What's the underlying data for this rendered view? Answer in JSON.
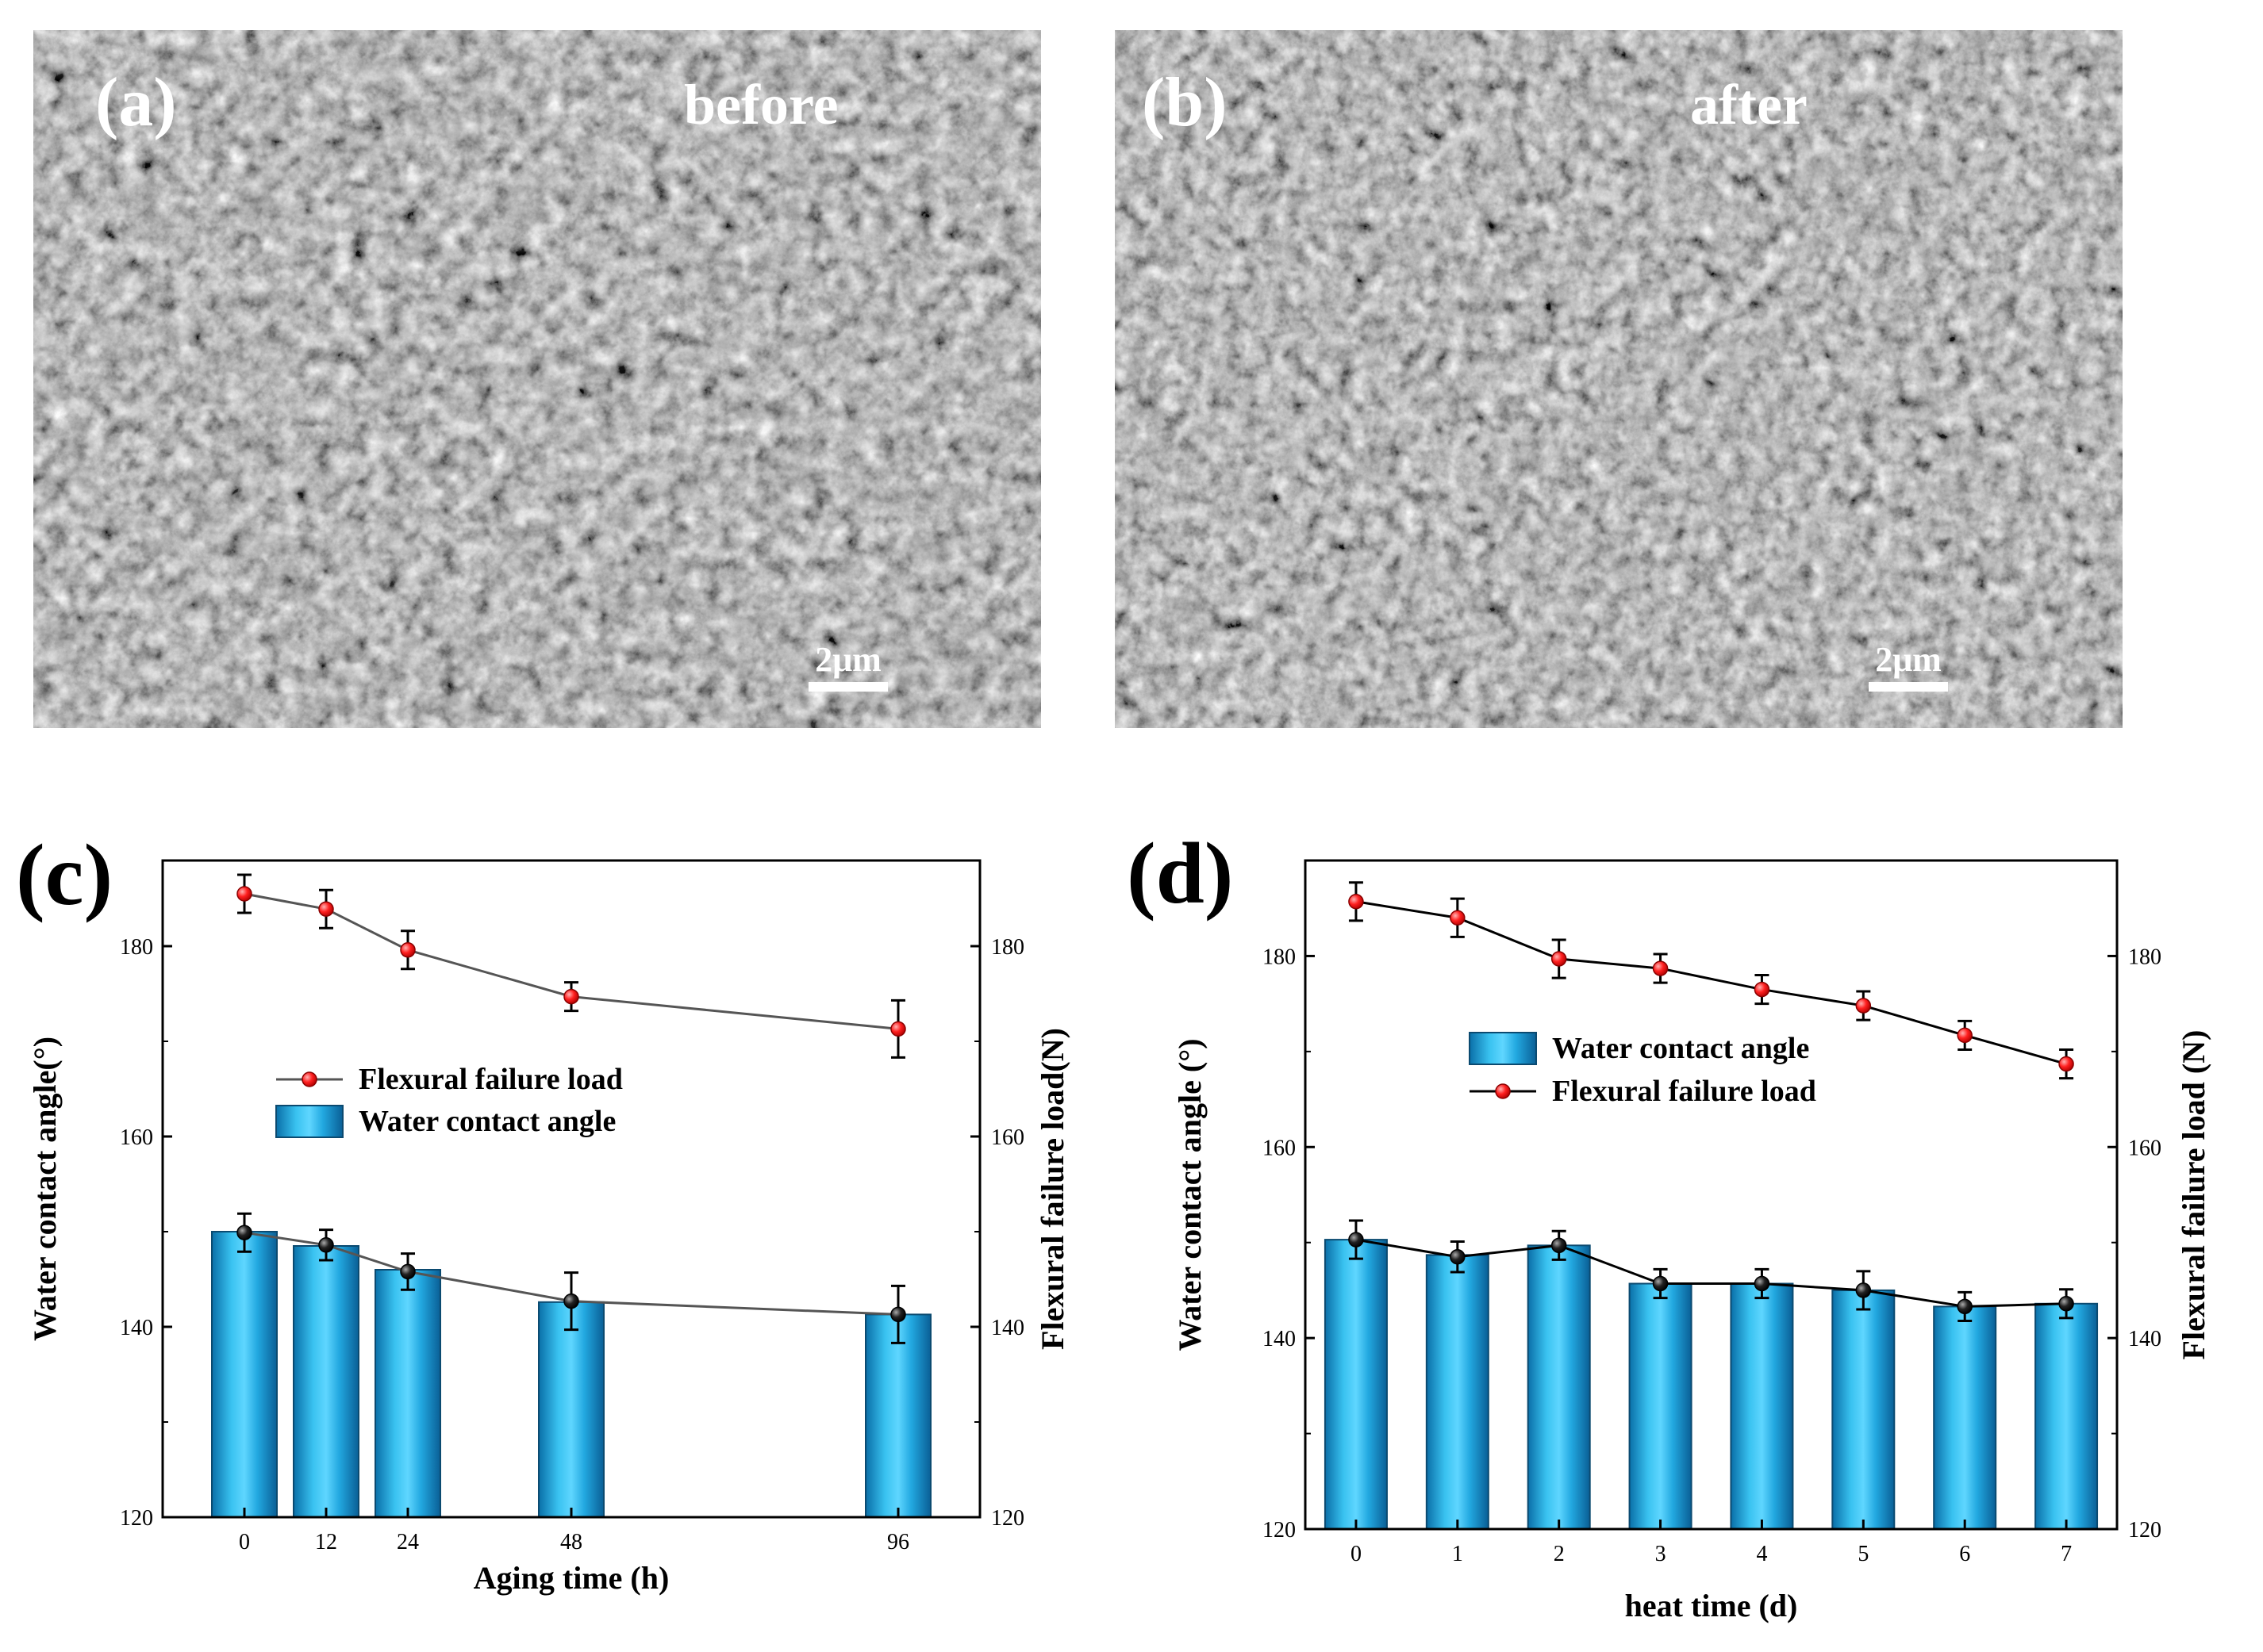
{
  "sem_images": [
    {
      "panel": "(a)",
      "caption": "before",
      "scale_bar": "2μm"
    },
    {
      "panel": "(b)",
      "caption": "after",
      "scale_bar": "2μm"
    }
  ],
  "chart_data": [
    {
      "panel": "(c)",
      "type": "bar",
      "xlabel": "Aging time (h)",
      "ylabel": "Water contact angle(°)",
      "y2label": "Flexural failure load(N)",
      "x": [
        0,
        12,
        24,
        48,
        96
      ],
      "xticks": [
        "0",
        "12",
        "24",
        "48",
        "96"
      ],
      "xlim": [
        -12,
        108
      ],
      "ylim": [
        120,
        189
      ],
      "y2lim": [
        120,
        189
      ],
      "yticks": [
        120,
        140,
        160,
        180
      ],
      "y2ticks": [
        120,
        140,
        160,
        180
      ],
      "series": [
        {
          "name": "Water contact angle",
          "type": "bar",
          "color": "#1aa3dc",
          "values": [
            150.0,
            148.5,
            146.0,
            142.6,
            141.3
          ],
          "line_values": [
            149.9,
            148.6,
            145.8,
            142.7,
            141.3
          ],
          "errors": [
            2.0,
            1.6,
            1.9,
            3.0,
            3.0
          ]
        },
        {
          "name": "Flexural failure load",
          "type": "line",
          "color": "#e51b1b",
          "line_color": "#555555",
          "values": [
            185.5,
            183.9,
            179.6,
            174.7,
            171.3
          ],
          "errors": [
            2.0,
            2.0,
            2.0,
            1.5,
            3.0
          ]
        }
      ],
      "legend_order": [
        "Flexural failure load",
        "Water contact angle"
      ]
    },
    {
      "panel": "(d)",
      "type": "bar",
      "xlabel": "heat time (d)",
      "ylabel": "Water contact angle (°)",
      "y2label": "Flexural failure load (N)",
      "x": [
        0,
        1,
        2,
        3,
        4,
        5,
        6,
        7
      ],
      "xticks": [
        "0",
        "1",
        "2",
        "3",
        "4",
        "5",
        "6",
        "7"
      ],
      "xlim": [
        -0.5,
        7.5
      ],
      "ylim": [
        120,
        190
      ],
      "y2lim": [
        120,
        190
      ],
      "yticks": [
        120,
        140,
        160,
        180
      ],
      "y2ticks": [
        120,
        140,
        160,
        180
      ],
      "series": [
        {
          "name": "Water contact angle",
          "type": "bar",
          "color": "#1aa3dc",
          "values": [
            150.3,
            148.7,
            149.7,
            145.7,
            145.7,
            145.0,
            143.3,
            143.6
          ],
          "line_values": [
            150.3,
            148.5,
            149.7,
            145.7,
            145.7,
            145.0,
            143.3,
            143.6
          ],
          "errors": [
            2.0,
            1.6,
            1.5,
            1.5,
            1.5,
            2.0,
            1.5,
            1.5
          ]
        },
        {
          "name": "Flexural failure load",
          "type": "line",
          "color": "#e51b1b",
          "line_color": "#000000",
          "values": [
            185.7,
            184.0,
            179.7,
            178.7,
            176.5,
            174.8,
            171.7,
            168.7
          ],
          "errors": [
            2.0,
            2.0,
            2.0,
            1.5,
            1.5,
            1.5,
            1.5,
            1.5
          ]
        }
      ],
      "legend_order": [
        "Water contact angle",
        "Flexural failure load"
      ]
    }
  ]
}
